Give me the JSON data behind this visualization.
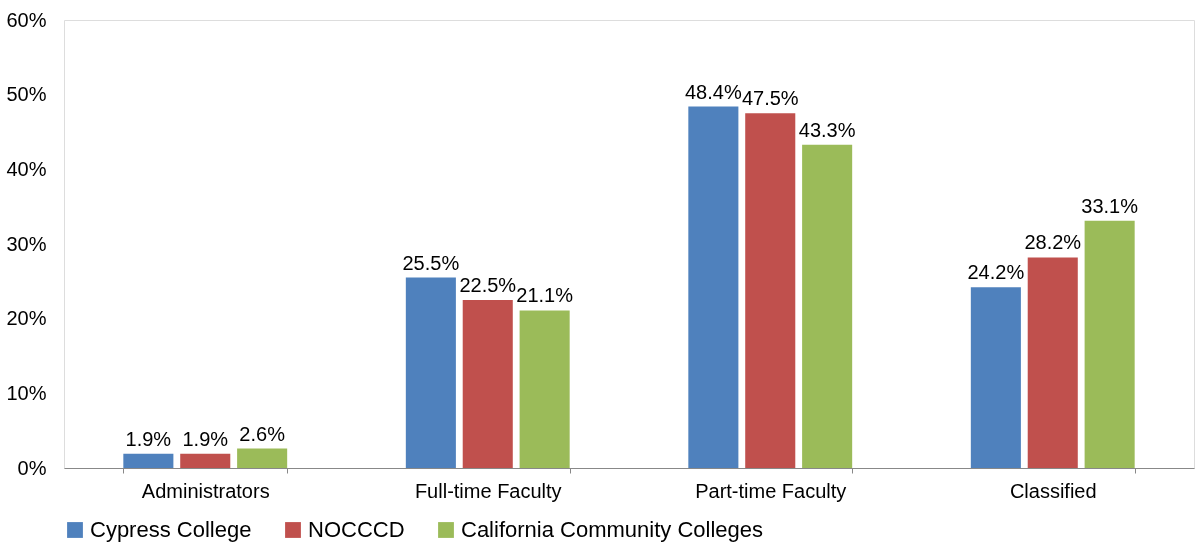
{
  "chart_data": {
    "type": "bar",
    "categories": [
      "Administrators",
      "Full-time Faculty",
      "Part-time Faculty",
      "Classified"
    ],
    "series": [
      {
        "name": "Cypress College",
        "color": "#4f81bd",
        "values": [
          1.9,
          25.5,
          48.4,
          24.2
        ],
        "value_labels": [
          "1.9%",
          "25.5%",
          "48.4%",
          "24.2%"
        ]
      },
      {
        "name": "NOCCCD",
        "color": "#c0504d",
        "values": [
          1.9,
          22.5,
          47.5,
          28.2
        ],
        "value_labels": [
          "1.9%",
          "22.5%",
          "47.5%",
          "28.2%"
        ]
      },
      {
        "name": "California Community Colleges",
        "color": "#9bbb59",
        "values": [
          2.6,
          21.1,
          43.3,
          33.1
        ],
        "value_labels": [
          "2.6%",
          "21.1%",
          "43.3%",
          "33.1%"
        ]
      }
    ],
    "ylim": [
      0,
      60
    ],
    "yticks": [
      {
        "value": 0,
        "label": "0%"
      },
      {
        "value": 10,
        "label": "10%"
      },
      {
        "value": 20,
        "label": "20%"
      },
      {
        "value": 30,
        "label": "30%"
      },
      {
        "value": 40,
        "label": "40%"
      },
      {
        "value": 50,
        "label": "50%"
      },
      {
        "value": 60,
        "label": "60%"
      }
    ],
    "grid": false,
    "legend": "bottom"
  }
}
